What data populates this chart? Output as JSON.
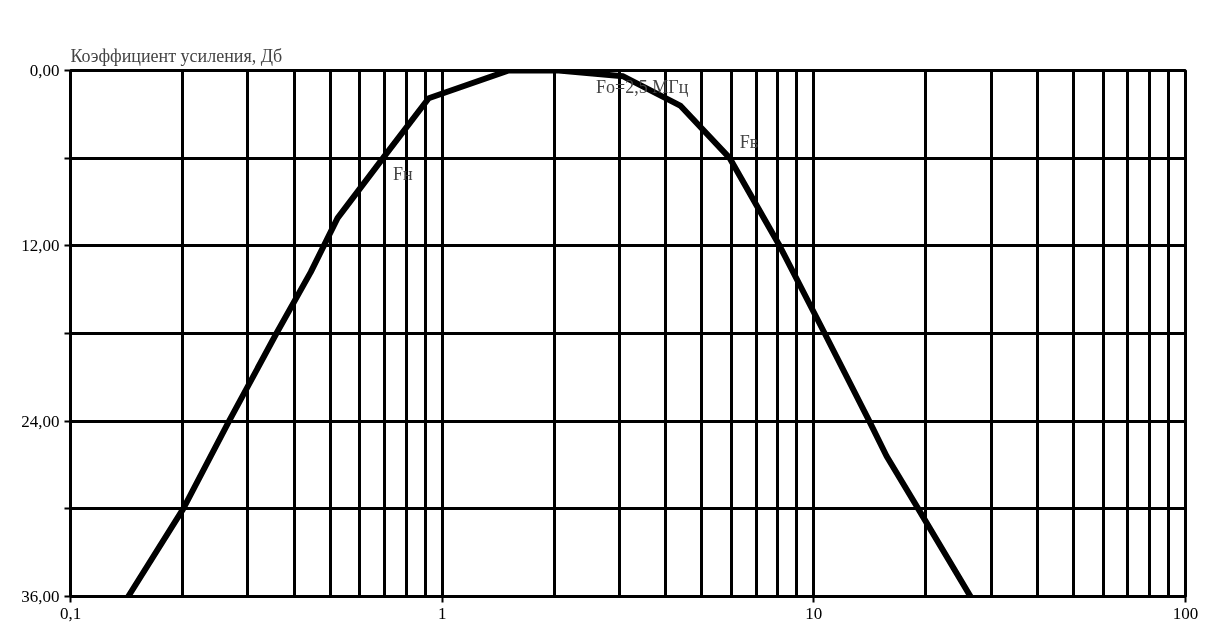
{
  "chart_data": {
    "type": "line",
    "ylabel": "Коэффициент усиления, Дб",
    "x": [
      0.143,
      0.201,
      0.267,
      0.358,
      0.443,
      0.523,
      0.693,
      0.92,
      1.51,
      2.06,
      3.07,
      4.37,
      5.94,
      8.09,
      10.7,
      14.1,
      15.7,
      19.1,
      26.4
    ],
    "series": [
      {
        "color": "#000000",
        "values": [
          36,
          30,
          24,
          18,
          13.8,
          10.1,
          6,
          1.9,
          0,
          0,
          0.4,
          2.4,
          6,
          12,
          18,
          24,
          26.4,
          30,
          36
        ]
      }
    ],
    "log": "x",
    "xlim": [
      0.1,
      100
    ],
    "xticks": [
      {
        "value": 0.1,
        "label": "0,1"
      },
      1,
      10,
      100
    ],
    "ylim": [
      36,
      0
    ],
    "yticks": [
      {
        "value": 0,
        "label": "0,00"
      },
      {
        "value": 6,
        "label": null
      },
      {
        "value": 12,
        "label": "12,00"
      },
      {
        "value": 18,
        "label": null
      },
      {
        "value": 24,
        "label": "24,00"
      },
      {
        "value": 30,
        "label": null
      },
      {
        "value": 36,
        "label": "36,00"
      }
    ],
    "grid": true,
    "marker": "none",
    "line_style": "solid",
    "annotations": [
      {
        "text": "Fo=2,5 МГц",
        "x": 2.5,
        "y": 0
      },
      {
        "text": "Fв",
        "x": 5.94,
        "y": 6
      },
      {
        "text": "Fн",
        "x": 0.693,
        "y": 6
      }
    ]
  }
}
